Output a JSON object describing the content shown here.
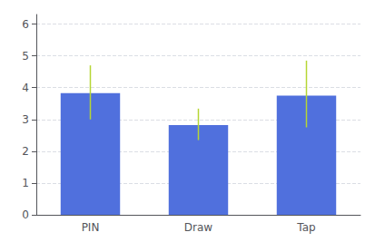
{
  "chart_data": {
    "type": "bar",
    "categories": [
      "PIN",
      "Draw",
      "Tap"
    ],
    "values": [
      3.83,
      2.82,
      3.75
    ],
    "yerr_lower": [
      0.83,
      0.47,
      1.0
    ],
    "yerr_upper": [
      0.87,
      0.52,
      1.1
    ],
    "ylim": [
      0,
      6.3
    ],
    "yticks": [
      0,
      1,
      2,
      3,
      4,
      5,
      6
    ],
    "grid": true
  }
}
